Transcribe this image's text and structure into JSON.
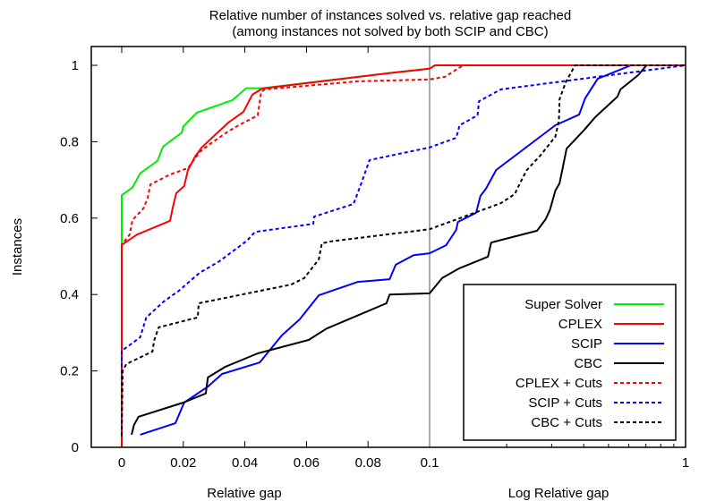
{
  "chart_data": {
    "type": "line",
    "title": "Relative number of instances solved vs. relative gap reached",
    "subtitle": "(among instances not solved by both SCIP and CBC)",
    "xlabel_left": "Relative gap",
    "xlabel_right": "Log Relative gap",
    "ylabel": "Instances",
    "x_axis": {
      "scale": "linear 0-0.1 then log 0.1-1",
      "linear_range": [
        -0.01,
        0.1
      ],
      "log_range": [
        0.1,
        1
      ],
      "tick_labels": [
        "0",
        "0.02",
        "0.04",
        "0.06",
        "0.08",
        "0.1",
        "1"
      ],
      "tick_values": [
        0,
        0.02,
        0.04,
        0.06,
        0.08,
        0.1,
        1
      ],
      "minor_log_ticks": [
        0.2,
        0.3,
        0.4,
        0.5,
        0.6,
        0.7,
        0.8,
        0.9
      ]
    },
    "y_axis": {
      "range": [
        0,
        1.05
      ],
      "tick_labels": [
        "0",
        "0.2",
        "0.4",
        "0.6",
        "0.8",
        "1"
      ],
      "tick_values": [
        0,
        0.2,
        0.4,
        0.6,
        0.8,
        1
      ]
    },
    "grid": false,
    "legend_position": "bottom-right",
    "series": [
      {
        "name": "Super Solver",
        "color": "#00ee00",
        "dash": "solid",
        "points": [
          [
            0,
            0.0
          ],
          [
            0,
            0.66
          ],
          [
            0.0035,
            0.68
          ],
          [
            0.006,
            0.717
          ],
          [
            0.0116,
            0.75
          ],
          [
            0.0134,
            0.787
          ],
          [
            0.0195,
            0.824
          ],
          [
            0.02,
            0.84
          ],
          [
            0.0244,
            0.876
          ],
          [
            0.036,
            0.909
          ],
          [
            0.0404,
            0.94
          ],
          [
            0.0456,
            0.94
          ],
          [
            0.0884,
            0.981
          ],
          [
            0.1,
            0.991
          ],
          [
            0.105,
            1.0
          ],
          [
            1,
            1.0
          ]
        ]
      },
      {
        "name": "CPLEX",
        "color": "#ff0000",
        "dash": "solid",
        "points": [
          [
            0,
            0.0
          ],
          [
            0,
            0.53
          ],
          [
            0.005,
            0.557
          ],
          [
            0.0157,
            0.593
          ],
          [
            0.0166,
            0.628
          ],
          [
            0.0177,
            0.665
          ],
          [
            0.0203,
            0.684
          ],
          [
            0.0215,
            0.726
          ],
          [
            0.0238,
            0.761
          ],
          [
            0.026,
            0.785
          ],
          [
            0.029,
            0.808
          ],
          [
            0.0346,
            0.85
          ],
          [
            0.0395,
            0.878
          ],
          [
            0.0424,
            0.923
          ],
          [
            0.0456,
            0.939
          ],
          [
            0.0884,
            0.981
          ],
          [
            0.1,
            0.991
          ],
          [
            0.105,
            1.0
          ],
          [
            1,
            1.0
          ]
        ]
      },
      {
        "name": "SCIP",
        "color": "#0000ff",
        "dash": "solid",
        "points": [
          [
            0.006,
            0.033
          ],
          [
            0.0174,
            0.063
          ],
          [
            0.0203,
            0.117
          ],
          [
            0.028,
            0.159
          ],
          [
            0.0326,
            0.192
          ],
          [
            0.0448,
            0.222
          ],
          [
            0.052,
            0.293
          ],
          [
            0.0578,
            0.335
          ],
          [
            0.064,
            0.398
          ],
          [
            0.0767,
            0.433
          ],
          [
            0.087,
            0.44
          ],
          [
            0.089,
            0.478
          ],
          [
            0.0948,
            0.503
          ],
          [
            0.1,
            0.508
          ],
          [
            0.116,
            0.529
          ],
          [
            0.127,
            0.569
          ],
          [
            0.129,
            0.59
          ],
          [
            0.152,
            0.614
          ],
          [
            0.158,
            0.658
          ],
          [
            0.166,
            0.677
          ],
          [
            0.182,
            0.726
          ],
          [
            0.31,
            0.843
          ],
          [
            0.384,
            0.871
          ],
          [
            0.405,
            0.913
          ],
          [
            0.454,
            0.965
          ],
          [
            0.612,
            1.0
          ],
          [
            1,
            1.0
          ]
        ]
      },
      {
        "name": "CBC",
        "color": "#000000",
        "dash": "solid",
        "points": [
          [
            0.0032,
            0.033
          ],
          [
            0.004,
            0.059
          ],
          [
            0.0055,
            0.08
          ],
          [
            0.02,
            0.117
          ],
          [
            0.0273,
            0.141
          ],
          [
            0.028,
            0.183
          ],
          [
            0.0337,
            0.211
          ],
          [
            0.0442,
            0.246
          ],
          [
            0.0607,
            0.281
          ],
          [
            0.0666,
            0.311
          ],
          [
            0.086,
            0.377
          ],
          [
            0.087,
            0.4
          ],
          [
            0.1,
            0.403
          ],
          [
            0.112,
            0.443
          ],
          [
            0.13,
            0.468
          ],
          [
            0.169,
            0.499
          ],
          [
            0.174,
            0.536
          ],
          [
            0.263,
            0.567
          ],
          [
            0.284,
            0.597
          ],
          [
            0.295,
            0.621
          ],
          [
            0.31,
            0.672
          ],
          [
            0.322,
            0.691
          ],
          [
            0.343,
            0.782
          ],
          [
            0.402,
            0.831
          ],
          [
            0.443,
            0.864
          ],
          [
            0.542,
            0.918
          ],
          [
            0.557,
            0.937
          ],
          [
            0.652,
            0.974
          ],
          [
            0.704,
            1.0
          ],
          [
            1,
            1.0
          ]
        ]
      },
      {
        "name": "CPLEX + Cuts",
        "color": "#ff0000",
        "dash": "dashed",
        "points": [
          [
            0,
            0.0
          ],
          [
            0,
            0.53
          ],
          [
            0.0026,
            0.557
          ],
          [
            0.0035,
            0.595
          ],
          [
            0.007,
            0.625
          ],
          [
            0.0084,
            0.651
          ],
          [
            0.0093,
            0.688
          ],
          [
            0.0157,
            0.714
          ],
          [
            0.0215,
            0.731
          ],
          [
            0.0253,
            0.773
          ],
          [
            0.029,
            0.796
          ],
          [
            0.0346,
            0.827
          ],
          [
            0.038,
            0.843
          ],
          [
            0.0442,
            0.869
          ],
          [
            0.0453,
            0.93
          ],
          [
            0.0465,
            0.937
          ],
          [
            0.0767,
            0.958
          ],
          [
            0.1,
            0.963
          ],
          [
            0.115,
            0.97
          ],
          [
            0.135,
            1.0
          ],
          [
            1,
            1.0
          ]
        ]
      },
      {
        "name": "SCIP + Cuts",
        "color": "#0000ff",
        "dash": "dashed",
        "points": [
          [
            0,
            0.03
          ],
          [
            0,
            0.253
          ],
          [
            0.003,
            0.27
          ],
          [
            0.006,
            0.288
          ],
          [
            0.008,
            0.34
          ],
          [
            0.0137,
            0.382
          ],
          [
            0.0186,
            0.41
          ],
          [
            0.0253,
            0.457
          ],
          [
            0.0317,
            0.487
          ],
          [
            0.0407,
            0.541
          ],
          [
            0.0433,
            0.564
          ],
          [
            0.0622,
            0.585
          ],
          [
            0.0625,
            0.604
          ],
          [
            0.0753,
            0.637
          ],
          [
            0.0776,
            0.686
          ],
          [
            0.0805,
            0.752
          ],
          [
            0.1,
            0.785
          ],
          [
            0.127,
            0.81
          ],
          [
            0.131,
            0.843
          ],
          [
            0.154,
            0.869
          ],
          [
            0.156,
            0.906
          ],
          [
            0.19,
            0.937
          ],
          [
            1,
            1.0
          ]
        ]
      },
      {
        "name": "CBC + Cuts",
        "color": "#000000",
        "dash": "dashed",
        "points": [
          [
            0,
            0.03
          ],
          [
            0.0003,
            0.2
          ],
          [
            0.0015,
            0.218
          ],
          [
            0.01,
            0.251
          ],
          [
            0.0105,
            0.279
          ],
          [
            0.012,
            0.314
          ],
          [
            0.0247,
            0.34
          ],
          [
            0.025,
            0.377
          ],
          [
            0.055,
            0.426
          ],
          [
            0.0593,
            0.443
          ],
          [
            0.064,
            0.492
          ],
          [
            0.065,
            0.534
          ],
          [
            0.068,
            0.539
          ],
          [
            0.1,
            0.571
          ],
          [
            0.19,
            0.639
          ],
          [
            0.215,
            0.663
          ],
          [
            0.23,
            0.703
          ],
          [
            0.24,
            0.726
          ],
          [
            0.27,
            0.763
          ],
          [
            0.31,
            0.813
          ],
          [
            0.32,
            0.855
          ],
          [
            0.322,
            0.911
          ],
          [
            0.34,
            0.955
          ],
          [
            0.37,
            1.0
          ],
          [
            1,
            1.0
          ]
        ]
      }
    ]
  }
}
